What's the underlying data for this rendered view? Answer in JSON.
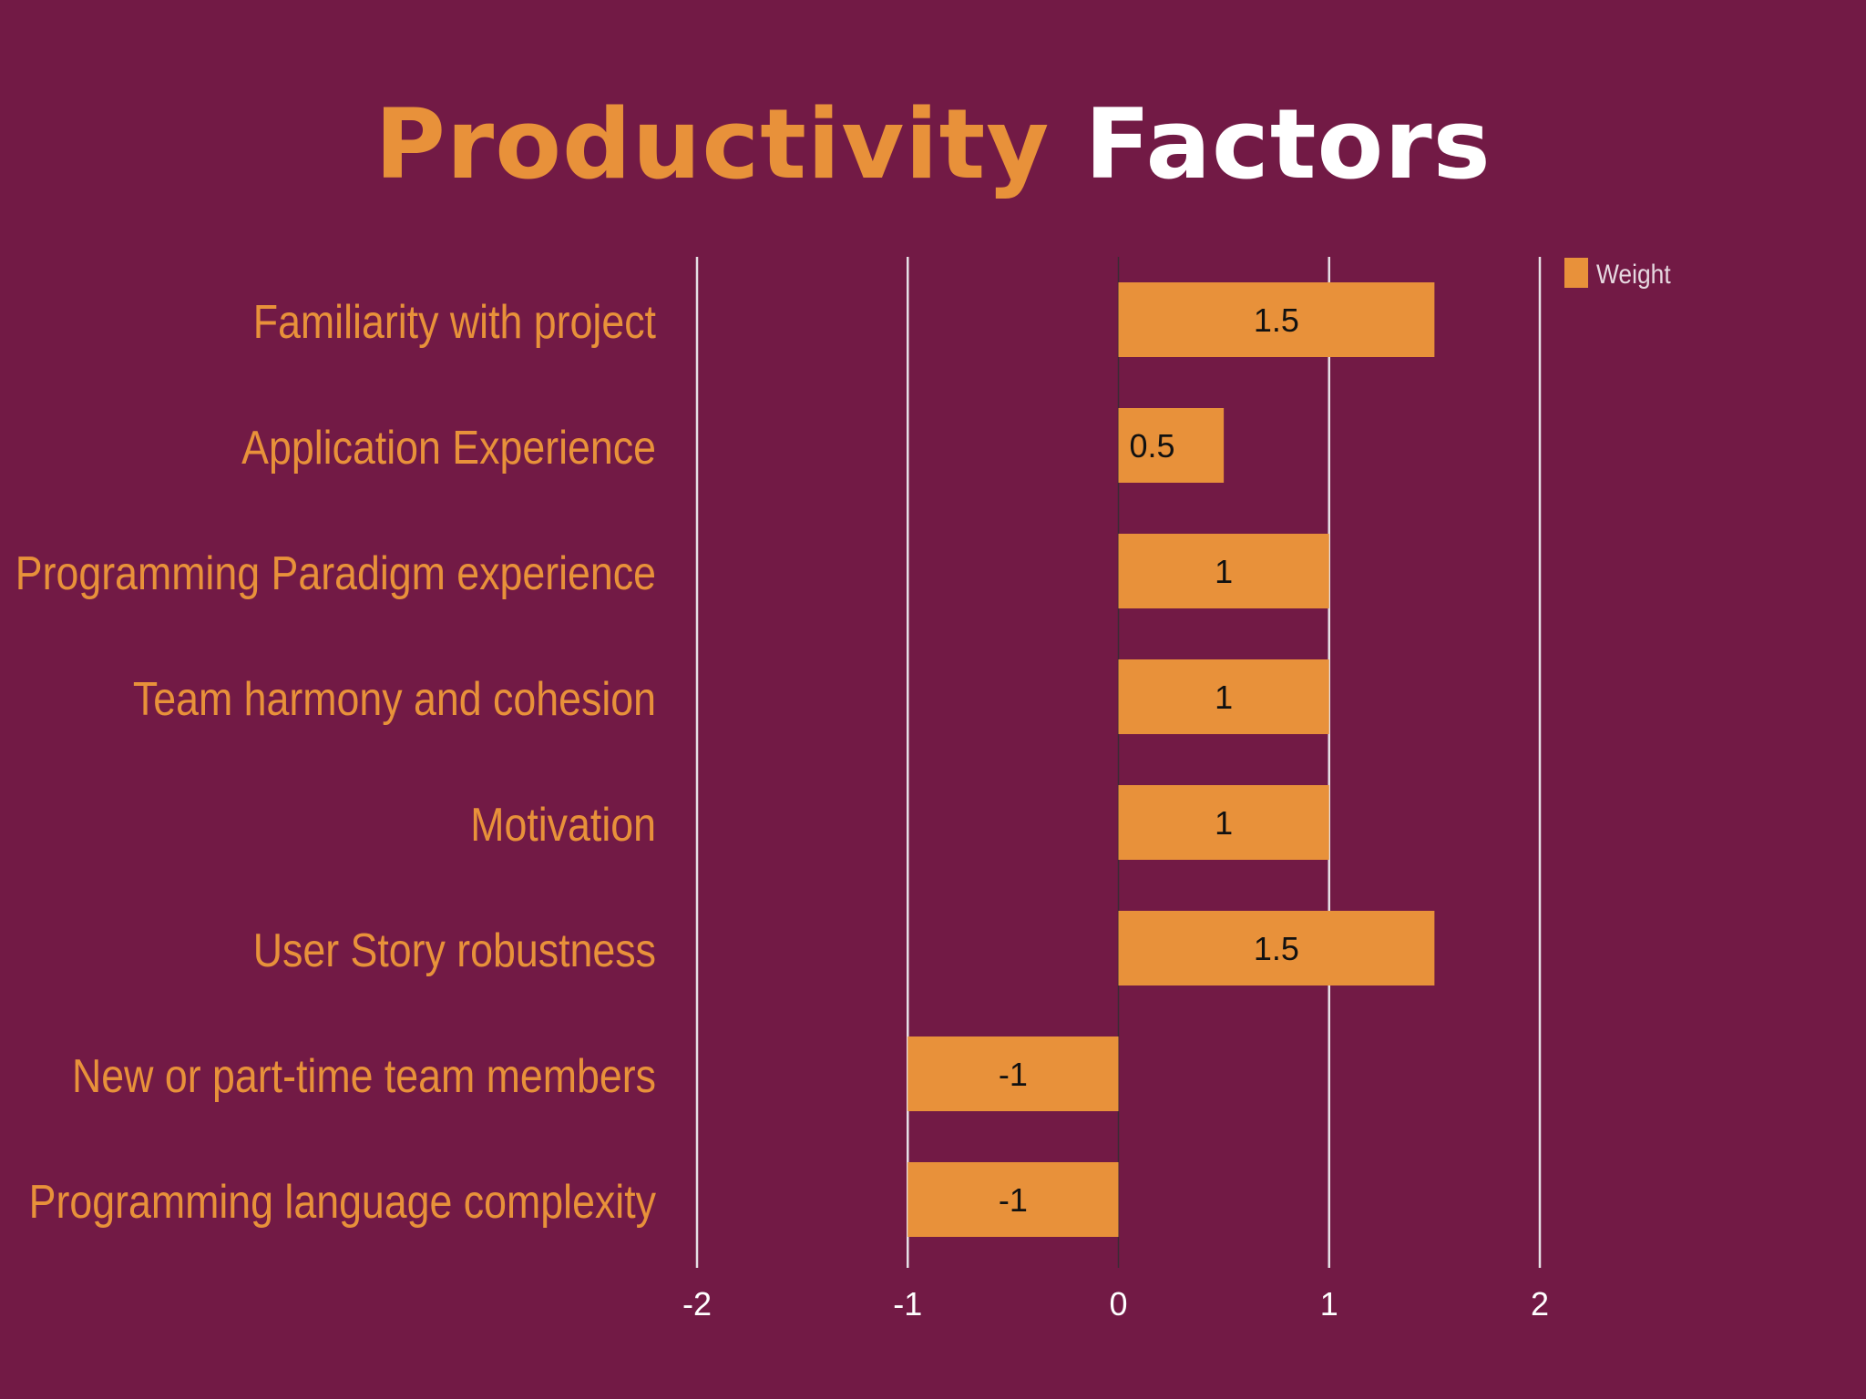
{
  "title": {
    "accent": "Productivity",
    "rest": "Factors"
  },
  "colors": {
    "background": "#721a45",
    "bar": "#e8913a",
    "accent": "#e8913a",
    "grid": "#e6e0e6",
    "label": "#e8913a",
    "tick": "#ffffff",
    "value": "#111111"
  },
  "chart_data": {
    "type": "bar",
    "orientation": "horizontal",
    "title": "Productivity Factors",
    "categories": [
      "Familiarity with project",
      "Application Experience",
      "Programming Paradigm experience",
      "Team harmony and cohesion",
      "Motivation",
      "User Story robustness",
      "New or part-time team members",
      "Programming language complexity"
    ],
    "series": [
      {
        "name": "Weight",
        "values": [
          1.5,
          0.5,
          1,
          1,
          1,
          1.5,
          -1,
          -1
        ]
      }
    ],
    "data_labels": [
      "1.5",
      "0.5",
      "1",
      "1",
      "1",
      "1.5",
      "-1",
      "-1"
    ],
    "xlim": [
      -2,
      2
    ],
    "xticks": [
      -2,
      -1,
      0,
      1,
      2
    ],
    "xtick_labels": [
      "-2",
      "-1",
      "0",
      "1",
      "2"
    ],
    "xlabel": "",
    "ylabel": "",
    "grid": true,
    "legend": "top-right"
  }
}
